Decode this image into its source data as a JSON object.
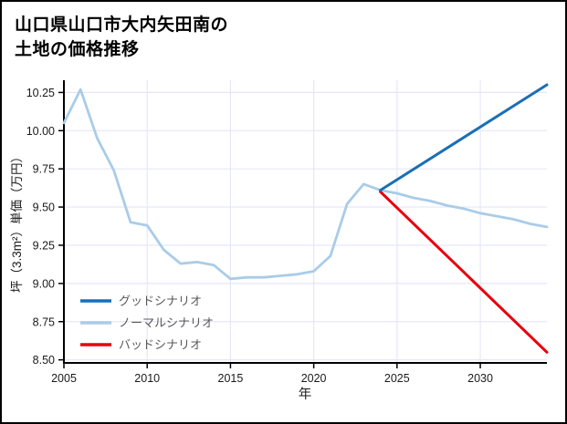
{
  "chart_data": {
    "type": "line",
    "title": "山口県山口市大内矢田南の土地の価格推移",
    "title_lines": [
      "山口県山口市大内矢田南の",
      "土地の価格推移"
    ],
    "xlabel": "年",
    "ylabel": "坪（3.3m²）単価（万円）",
    "xlim": [
      2005,
      2034
    ],
    "ylim": [
      8.48,
      10.33
    ],
    "xticks": [
      2005,
      2010,
      2015,
      2020,
      2025,
      2030
    ],
    "yticks": [
      8.5,
      8.75,
      9.0,
      9.25,
      9.5,
      9.75,
      10.0,
      10.25
    ],
    "grid": true,
    "grid_color": "#e6e6fa",
    "axis_color": "#000000",
    "legend_position": "bottom-left",
    "draw_order": [
      1,
      2,
      0
    ],
    "series": [
      {
        "id": "good-scenario",
        "name": "グッドシナリオ",
        "color": "#1a6fb5",
        "width": 3,
        "x": [
          2024,
          2034
        ],
        "y": [
          9.61,
          10.3
        ]
      },
      {
        "id": "normal-scenario",
        "name": "ノーマルシナリオ",
        "color": "#a9cce8",
        "width": 2.8,
        "x": [
          2005,
          2006,
          2007,
          2008,
          2009,
          2010,
          2011,
          2012,
          2013,
          2014,
          2015,
          2016,
          2017,
          2018,
          2019,
          2020,
          2021,
          2022,
          2023,
          2024,
          2025,
          2026,
          2027,
          2028,
          2029,
          2030,
          2031,
          2032,
          2033,
          2034
        ],
        "y": [
          10.05,
          10.27,
          9.95,
          9.74,
          9.4,
          9.38,
          9.22,
          9.13,
          9.14,
          9.12,
          9.03,
          9.04,
          9.04,
          9.05,
          9.06,
          9.08,
          9.18,
          9.52,
          9.65,
          9.61,
          9.59,
          9.56,
          9.54,
          9.51,
          9.49,
          9.46,
          9.44,
          9.42,
          9.39,
          9.37
        ]
      },
      {
        "id": "bad-scenario",
        "name": "バッドシナリオ",
        "color": "#e8000d",
        "width": 3,
        "x": [
          2024,
          2034
        ],
        "y": [
          9.6,
          8.55
        ]
      }
    ]
  }
}
